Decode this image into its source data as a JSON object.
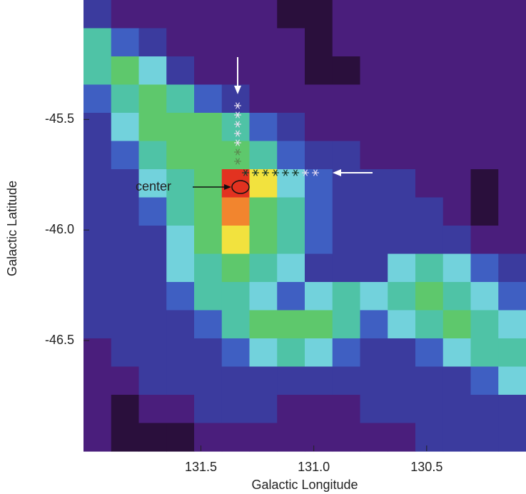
{
  "chart_data": {
    "type": "heatmap",
    "xlabel": "Galactic Longitude",
    "ylabel": "Galactic Latitude",
    "annotation": "center",
    "xlim": [
      132.02,
      130.06
    ],
    "ylim": [
      -47.0,
      -44.96
    ],
    "xticks": [
      131.5,
      {
        "value": 131.0,
        "label": "131.0"
      },
      130.5
    ],
    "yticks": [
      -45.5,
      {
        "value": -46.0,
        "label": "-46.0"
      },
      -46.5
    ],
    "colors": [
      "#2a0f3c",
      "#4a1e7c",
      "#3b3b9e",
      "#3f5fc2",
      "#72d2dc",
      "#4fc3a6",
      "#5ec86c",
      "#f2e23e",
      "#f2852e",
      "#e23220"
    ],
    "z": [
      [
        2,
        1,
        1,
        1,
        1,
        1,
        1,
        0,
        0,
        1,
        1,
        1,
        1,
        1,
        1,
        1
      ],
      [
        5,
        3,
        2,
        1,
        1,
        1,
        1,
        1,
        0,
        1,
        1,
        1,
        1,
        1,
        1,
        1
      ],
      [
        5,
        6,
        4,
        2,
        1,
        1,
        1,
        1,
        0,
        0,
        1,
        1,
        1,
        1,
        1,
        1
      ],
      [
        3,
        5,
        6,
        5,
        3,
        2,
        1,
        1,
        1,
        1,
        1,
        1,
        1,
        1,
        1,
        1
      ],
      [
        2,
        4,
        6,
        6,
        6,
        5,
        3,
        2,
        1,
        1,
        1,
        1,
        1,
        1,
        1,
        1
      ],
      [
        2,
        3,
        5,
        6,
        6,
        6,
        5,
        3,
        2,
        2,
        1,
        1,
        1,
        1,
        1,
        1
      ],
      [
        2,
        2,
        4,
        5,
        6,
        9,
        7,
        4,
        3,
        2,
        2,
        2,
        1,
        1,
        0,
        1
      ],
      [
        2,
        2,
        3,
        5,
        6,
        8,
        6,
        5,
        3,
        2,
        2,
        2,
        2,
        1,
        0,
        1
      ],
      [
        2,
        2,
        2,
        4,
        6,
        7,
        6,
        5,
        3,
        2,
        2,
        2,
        2,
        2,
        1,
        1
      ],
      [
        2,
        2,
        2,
        4,
        5,
        6,
        5,
        4,
        2,
        2,
        2,
        4,
        5,
        4,
        3,
        2
      ],
      [
        2,
        2,
        2,
        3,
        5,
        5,
        4,
        3,
        4,
        5,
        4,
        5,
        6,
        5,
        4,
        3
      ],
      [
        2,
        2,
        2,
        2,
        3,
        5,
        6,
        6,
        6,
        5,
        3,
        4,
        5,
        6,
        5,
        4
      ],
      [
        1,
        2,
        2,
        2,
        2,
        3,
        4,
        5,
        4,
        3,
        2,
        2,
        3,
        4,
        5,
        5
      ],
      [
        1,
        1,
        2,
        2,
        2,
        2,
        2,
        2,
        2,
        2,
        2,
        2,
        2,
        2,
        3,
        4
      ],
      [
        1,
        0,
        1,
        1,
        2,
        2,
        2,
        1,
        1,
        1,
        2,
        2,
        2,
        2,
        2,
        2
      ],
      [
        1,
        0,
        0,
        0,
        1,
        1,
        1,
        1,
        1,
        1,
        1,
        1,
        2,
        2,
        2,
        2
      ]
    ]
  }
}
